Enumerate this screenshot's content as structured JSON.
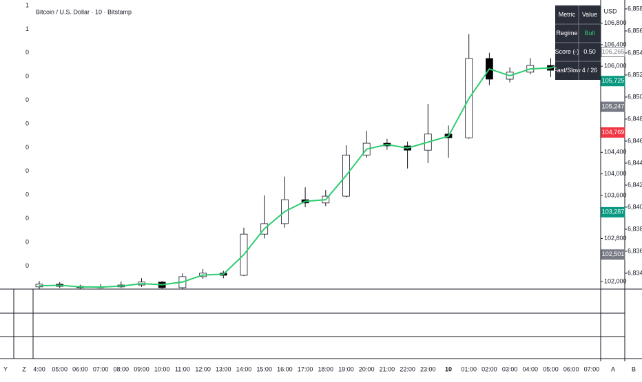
{
  "chart_data": {
    "type": "candlestick",
    "title": "Bitcoin / U.S. Dollar · 10 · Bitstamp",
    "currency": "USD",
    "categories": [
      "4:00",
      "05:00",
      "06:00",
      "07:00",
      "08:00",
      "09:00",
      "10:00",
      "11:00",
      "12:00",
      "13:00",
      "14:00",
      "15:00",
      "16:00",
      "17:00",
      "18:00",
      "19:00",
      "20:00",
      "21:00",
      "22:00",
      "23:00",
      "10",
      "01:00",
      "02:00",
      "03:00",
      "04:00",
      "05:00",
      "06:00",
      "07:00"
    ],
    "open": [
      101900,
      101950,
      101910,
      101885,
      101900,
      101935,
      101990,
      101885,
      102090,
      102155,
      102115,
      102880,
      103075,
      103520,
      103460,
      103585,
      104350,
      104570,
      104520,
      104440,
      104740,
      104670,
      106145,
      105760,
      105890,
      106015,
      105925,
      106270
    ],
    "high": [
      102010,
      101990,
      101940,
      101950,
      102000,
      102060,
      102010,
      102150,
      102230,
      102200,
      103000,
      103600,
      103950,
      103750,
      103700,
      104530,
      104800,
      104650,
      104600,
      105300,
      104900,
      106600,
      106250,
      105980,
      106150,
      106150,
      106350,
      106450
    ],
    "low": [
      101860,
      101880,
      101860,
      101870,
      101880,
      101900,
      101860,
      101860,
      102050,
      102060,
      102100,
      102800,
      103000,
      103380,
      103400,
      103560,
      104300,
      104450,
      104100,
      104200,
      104300,
      104650,
      105650,
      105700,
      105850,
      105800,
      105900,
      106150
    ],
    "close": [
      101950,
      101910,
      101885,
      101900,
      101935,
      101990,
      101885,
      102090,
      102155,
      102115,
      102880,
      103075,
      103520,
      103460,
      103585,
      104350,
      104570,
      104520,
      104440,
      104740,
      104670,
      106145,
      105760,
      105890,
      106015,
      105925,
      106270,
      106310
    ],
    "ma": [
      101920,
      101930,
      101900,
      101895,
      101915,
      101960,
      101940,
      101990,
      102120,
      102135,
      102500,
      102980,
      103300,
      103490,
      103520,
      103970,
      104460,
      104545,
      104480,
      104590,
      104700,
      105400,
      105950,
      105825,
      105950,
      105970,
      106100,
      106290
    ],
    "ma_color": "#2ecc71",
    "up_color": "#ffffff",
    "down_color": "#000000",
    "ylim": [
      101859,
      107231
    ],
    "yticks": [
      {
        "value": 102000,
        "label": "102,000"
      },
      {
        "value": 102800,
        "label": "102,800"
      },
      {
        "value": 103600,
        "label": "103,600"
      },
      {
        "value": 104000,
        "label": "104,000"
      },
      {
        "value": 104400,
        "label": "104,400"
      },
      {
        "value": 106000,
        "label": "106,000"
      },
      {
        "value": 106400,
        "label": "106,400"
      },
      {
        "value": 106800,
        "label": "106,800"
      }
    ],
    "y2lim": [
      6832.56,
      6858.81
    ],
    "y2ticks": [
      {
        "value": 6834,
        "label": "6,834"
      },
      {
        "value": 6836,
        "label": "6,836"
      },
      {
        "value": 6838,
        "label": "6,838"
      },
      {
        "value": 6840,
        "label": "6,840"
      },
      {
        "value": 6842,
        "label": "6,842"
      },
      {
        "value": 6844,
        "label": "6,844"
      },
      {
        "value": 6846,
        "label": "6,846"
      },
      {
        "value": 6848,
        "label": "6,848"
      },
      {
        "value": 6850,
        "label": "6,850"
      },
      {
        "value": 6852,
        "label": "6,852"
      },
      {
        "value": 6854,
        "label": "6,854"
      },
      {
        "value": 6856,
        "label": "6,856"
      },
      {
        "value": 6858,
        "label": "6,858"
      }
    ],
    "price_tags": [
      {
        "value": 106265,
        "label": "106,265",
        "color": "#ffffff"
      },
      {
        "value": 105725,
        "label": "105,725",
        "color": "#089981"
      },
      {
        "value": 105247,
        "label": "105,247",
        "color": "#787b86"
      },
      {
        "value": 104769,
        "label": "104,769",
        "color": "#f23645"
      },
      {
        "value": 103287,
        "label": "103,287",
        "color": "#089981"
      },
      {
        "value": 102501,
        "label": "102,501",
        "color": "#787b86"
      }
    ],
    "left_labels": [
      "1",
      "1",
      "0",
      "0",
      "0",
      "0",
      "0",
      "0",
      "0",
      "0",
      "0",
      "0"
    ]
  },
  "table": {
    "header": [
      "Metric",
      "Value"
    ],
    "rows": [
      [
        "Regime",
        "Bull"
      ],
      [
        "Score (-)",
        "0.50"
      ],
      [
        "Fast/Slow",
        "4 / 26"
      ]
    ]
  },
  "bottom_letters": [
    "Y",
    "Z",
    "A",
    "B"
  ]
}
